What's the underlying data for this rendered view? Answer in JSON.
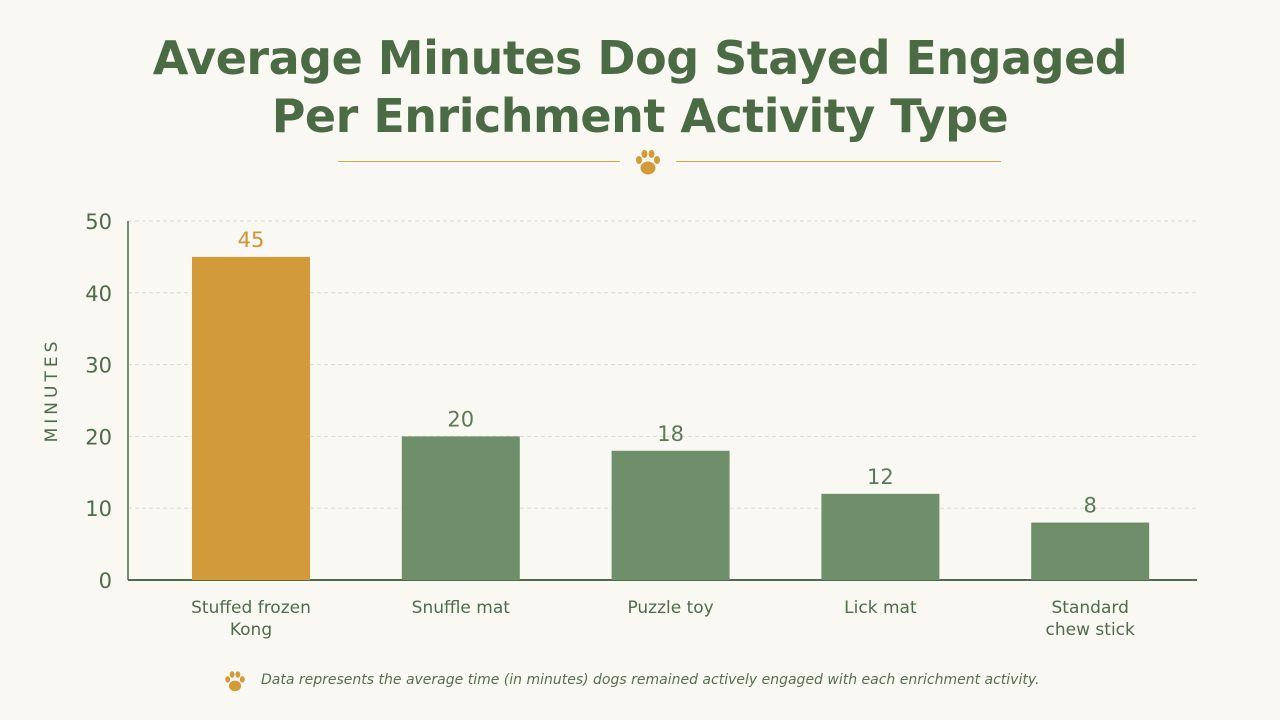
{
  "chart_data": {
    "type": "bar",
    "title": "Average Minutes Dog Stayed Engaged Per Enrichment Activity Type",
    "title_lines": [
      "Average Minutes Dog Stayed Engaged",
      "Per Enrichment Activity Type"
    ],
    "ylabel": "MINUTES",
    "xlabel": "",
    "ylim": [
      0,
      50
    ],
    "yticks": [
      0,
      10,
      20,
      30,
      40,
      50
    ],
    "grid": true,
    "categories": [
      "Stuffed frozen Kong",
      "Snuffle mat",
      "Puzzle toy",
      "Lick mat",
      "Standard chew stick"
    ],
    "category_lines": [
      [
        "Stuffed frozen",
        "Kong"
      ],
      [
        "Snuffle mat"
      ],
      [
        "Puzzle toy"
      ],
      [
        "Lick mat"
      ],
      [
        "Standard",
        "chew stick"
      ]
    ],
    "values": [
      45,
      20,
      18,
      12,
      8
    ],
    "highlight_index": 0,
    "colors": {
      "highlight": "#d39a3a",
      "bar": "#6e8f6a",
      "highlight_label": "#cf9433",
      "label": "#5c7a57",
      "axis": "#4e6b4a",
      "grid": "#d9d9d2"
    },
    "footnote": "Data represents the average time (in minutes) dogs remained actively engaged with each enrichment activity."
  },
  "icons": {
    "title_divider": "paw-icon",
    "footnote": "paw-icon"
  }
}
